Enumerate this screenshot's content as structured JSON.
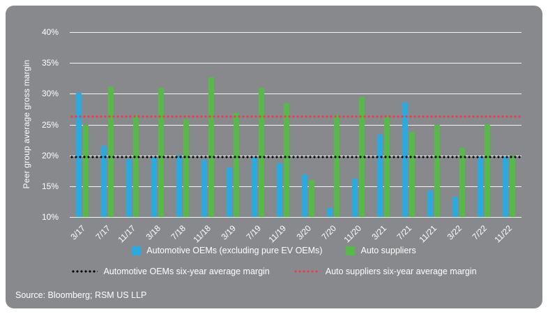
{
  "panel": {
    "background": "#87898c"
  },
  "chart_data": {
    "type": "bar",
    "title": "",
    "xlabel": "",
    "ylabel": "Peer group average gross margin",
    "ylim": [
      10,
      40
    ],
    "ytick_step": 5,
    "ytick_suffix": "%",
    "grid": true,
    "legend_position": "bottom",
    "categories": [
      "3/17",
      "7/17",
      "11/17",
      "3/18",
      "7/18",
      "11/18",
      "3/19",
      "7/19",
      "11/19",
      "3/20",
      "7/20",
      "11/20",
      "3/21",
      "7/21",
      "11/21",
      "3/22",
      "7/22",
      "11/22"
    ],
    "series": [
      {
        "name": "Automotive OEMs (excluding pure EV OEMs)",
        "color": "#29abe2",
        "values": [
          30.2,
          21.5,
          19.4,
          19.6,
          20.0,
          19.3,
          18.0,
          19.6,
          18.7,
          16.9,
          11.5,
          16.2,
          23.4,
          28.6,
          14.3,
          13.3,
          19.8,
          19.8
        ]
      },
      {
        "name": "Auto suppliers",
        "color": "#57b947",
        "values": [
          25.0,
          31.2,
          26.4,
          30.9,
          25.8,
          32.6,
          26.9,
          30.9,
          28.5,
          16.0,
          26.5,
          29.5,
          26.3,
          23.8,
          25.0,
          21.2,
          25.1,
          20.0
        ]
      }
    ],
    "reference_lines": [
      {
        "name": "Automotive OEMs six-year average margin",
        "color": "#000000",
        "value": 19.7,
        "style": "dotted"
      },
      {
        "name": "Auto suppliers six-year average margin",
        "color": "#f4364c",
        "value": 26.3,
        "style": "dotted"
      }
    ]
  },
  "source": {
    "label": "Source: Bloomberg; RSM US LLP"
  }
}
